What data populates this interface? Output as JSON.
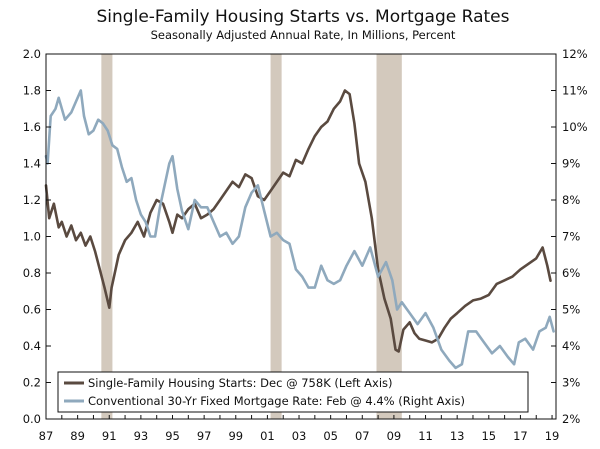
{
  "chart_data": {
    "type": "line",
    "title": "Single-Family Housing Starts vs. Mortgage Rates",
    "subtitle": "Seasonally Adjusted Annual Rate, In Millions, Percent",
    "x_tick_labels": [
      "87",
      "89",
      "91",
      "93",
      "95",
      "97",
      "99",
      "01",
      "03",
      "05",
      "07",
      "09",
      "11",
      "13",
      "15",
      "17",
      "19"
    ],
    "x_range": [
      1987,
      2019.25
    ],
    "left_axis": {
      "ylim": [
        0.0,
        2.0
      ],
      "tick_labels": [
        "0.0",
        "0.2",
        "0.4",
        "0.6",
        "0.8",
        "1.0",
        "1.2",
        "1.4",
        "1.6",
        "1.8",
        "2.0"
      ]
    },
    "right_axis": {
      "ylim": [
        2,
        12
      ],
      "tick_labels": [
        "2%",
        "3%",
        "4%",
        "5%",
        "6%",
        "7%",
        "8%",
        "9%",
        "10%",
        "11%",
        "12%"
      ]
    },
    "recessions": [
      [
        1990.5,
        1991.2
      ],
      [
        2001.2,
        2001.9
      ],
      [
        2007.9,
        2009.5
      ]
    ],
    "legend_placement": "bottom-left",
    "series": [
      {
        "name": "Single-Family Housing Starts",
        "legend": "Single-Family Housing Starts: Dec @ 758K (Left Axis)",
        "axis": "left",
        "color": "#5a4a40",
        "x": [
          1987.0,
          1987.2,
          1987.5,
          1987.8,
          1988.0,
          1988.3,
          1988.6,
          1988.9,
          1989.2,
          1989.5,
          1989.8,
          1990.1,
          1990.4,
          1990.7,
          1991.0,
          1991.15,
          1991.3,
          1991.6,
          1992.0,
          1992.4,
          1992.8,
          1993.2,
          1993.6,
          1994.0,
          1994.4,
          1994.8,
          1995.0,
          1995.3,
          1995.6,
          1996.0,
          1996.4,
          1996.8,
          1997.2,
          1997.6,
          1998.0,
          1998.4,
          1998.8,
          1999.2,
          1999.6,
          2000.0,
          2000.4,
          2000.8,
          2001.2,
          2001.6,
          2002.0,
          2002.4,
          2002.8,
          2003.2,
          2003.6,
          2004.0,
          2004.4,
          2004.8,
          2005.2,
          2005.6,
          2005.9,
          2006.2,
          2006.5,
          2006.8,
          2007.2,
          2007.6,
          2008.0,
          2008.4,
          2008.8,
          2009.1,
          2009.3,
          2009.6,
          2010.0,
          2010.3,
          2010.6,
          2011.0,
          2011.4,
          2011.8,
          2012.2,
          2012.6,
          2013.0,
          2013.5,
          2014.0,
          2014.5,
          2015.0,
          2015.5,
          2016.0,
          2016.5,
          2017.0,
          2017.5,
          2018.0,
          2018.4,
          2018.7,
          2018.9
        ],
        "values": [
          1.28,
          1.1,
          1.18,
          1.05,
          1.08,
          1.0,
          1.06,
          0.98,
          1.02,
          0.95,
          1.0,
          0.92,
          0.82,
          0.72,
          0.61,
          0.72,
          0.78,
          0.9,
          0.98,
          1.02,
          1.08,
          1.0,
          1.13,
          1.2,
          1.18,
          1.08,
          1.02,
          1.12,
          1.1,
          1.15,
          1.18,
          1.1,
          1.12,
          1.15,
          1.2,
          1.25,
          1.3,
          1.27,
          1.34,
          1.32,
          1.22,
          1.2,
          1.25,
          1.3,
          1.35,
          1.33,
          1.42,
          1.4,
          1.48,
          1.55,
          1.6,
          1.63,
          1.7,
          1.74,
          1.8,
          1.78,
          1.62,
          1.4,
          1.3,
          1.1,
          0.82,
          0.66,
          0.55,
          0.38,
          0.37,
          0.49,
          0.53,
          0.47,
          0.44,
          0.43,
          0.42,
          0.44,
          0.5,
          0.55,
          0.58,
          0.62,
          0.65,
          0.66,
          0.68,
          0.74,
          0.76,
          0.78,
          0.82,
          0.85,
          0.88,
          0.94,
          0.84,
          0.758
        ]
      },
      {
        "name": "Conventional 30-Yr Fixed Mortgage Rate",
        "legend": "Conventional 30-Yr Fixed Mortgage Rate: Feb @ 4.4% (Right Axis)",
        "axis": "right",
        "color": "#8fa9bd",
        "x": [
          1987.0,
          1987.1,
          1987.3,
          1987.6,
          1987.8,
          1988.2,
          1988.6,
          1988.9,
          1989.2,
          1989.4,
          1989.7,
          1990.0,
          1990.3,
          1990.6,
          1990.9,
          1991.2,
          1991.5,
          1991.8,
          1992.1,
          1992.4,
          1992.7,
          1993.0,
          1993.3,
          1993.6,
          1993.9,
          1994.2,
          1994.5,
          1994.8,
          1995.0,
          1995.3,
          1995.6,
          1996.0,
          1996.4,
          1996.8,
          1997.2,
          1997.6,
          1998.0,
          1998.4,
          1998.8,
          1999.2,
          1999.6,
          2000.0,
          2000.4,
          2000.8,
          2001.2,
          2001.6,
          2002.0,
          2002.4,
          2002.8,
          2003.2,
          2003.6,
          2004.0,
          2004.4,
          2004.8,
          2005.2,
          2005.6,
          2006.0,
          2006.5,
          2007.0,
          2007.5,
          2008.0,
          2008.5,
          2008.9,
          2009.2,
          2009.5,
          2010.0,
          2010.5,
          2011.0,
          2011.5,
          2012.0,
          2012.5,
          2012.9,
          2013.3,
          2013.7,
          2014.2,
          2014.7,
          2015.2,
          2015.7,
          2016.2,
          2016.6,
          2016.9,
          2017.3,
          2017.8,
          2018.2,
          2018.6,
          2018.85,
          2019.1
        ],
        "values": [
          9.2,
          9.0,
          10.3,
          10.5,
          10.8,
          10.2,
          10.4,
          10.7,
          11.0,
          10.3,
          9.8,
          9.9,
          10.2,
          10.1,
          9.9,
          9.5,
          9.4,
          8.9,
          8.5,
          8.6,
          8.0,
          7.6,
          7.4,
          7.0,
          7.0,
          7.8,
          8.4,
          9.0,
          9.2,
          8.3,
          7.7,
          7.2,
          8.0,
          7.8,
          7.8,
          7.4,
          7.0,
          7.1,
          6.8,
          7.0,
          7.8,
          8.2,
          8.4,
          7.7,
          7.0,
          7.1,
          6.9,
          6.8,
          6.1,
          5.9,
          5.6,
          5.6,
          6.2,
          5.8,
          5.7,
          5.8,
          6.2,
          6.6,
          6.2,
          6.7,
          5.9,
          6.3,
          5.8,
          5.0,
          5.2,
          4.9,
          4.6,
          4.9,
          4.5,
          3.9,
          3.6,
          3.4,
          3.5,
          4.4,
          4.4,
          4.1,
          3.8,
          4.0,
          3.7,
          3.5,
          4.1,
          4.2,
          3.9,
          4.4,
          4.5,
          4.8,
          4.4
        ]
      }
    ]
  }
}
